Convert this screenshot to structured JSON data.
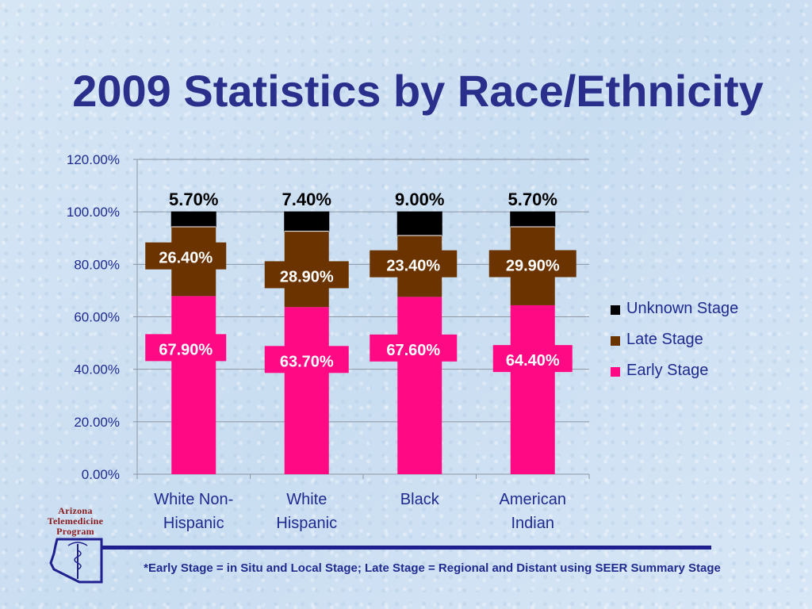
{
  "slide": {
    "title": "2009 Statistics by Race/Ethnicity",
    "footnote": "*Early Stage = in Situ and Local Stage; Late Stage = Regional and Distant using SEER Summary Stage",
    "logo": {
      "line1": "Arizona",
      "line2": "Telemedicine",
      "line3": "Program"
    }
  },
  "colors": {
    "early": "#ff0a84",
    "late": "#6b3300",
    "unknown": "#000000",
    "title": "#2a2f8c",
    "axis_text": "#1f2a8f",
    "category_text": "#1f2a8f"
  },
  "chart_data": {
    "type": "bar",
    "stacked": true,
    "categories": [
      [
        "White Non-",
        "Hispanic"
      ],
      [
        "White",
        "Hispanic"
      ],
      [
        "Black"
      ],
      [
        "American",
        "Indian"
      ]
    ],
    "series": [
      {
        "name": "Early Stage",
        "values": [
          67.9,
          63.7,
          67.6,
          64.4
        ],
        "labels": [
          "67.90%",
          "63.70%",
          "67.60%",
          "64.40%"
        ]
      },
      {
        "name": "Late Stage",
        "values": [
          26.4,
          28.9,
          23.4,
          29.9
        ],
        "labels": [
          "26.40%",
          "28.90%",
          "23.40%",
          "29.90%"
        ]
      },
      {
        "name": "Unknown Stage",
        "values": [
          5.7,
          7.4,
          9.0,
          5.7
        ],
        "labels": [
          "5.70%",
          "7.40%",
          "9.00%",
          "5.70%"
        ]
      }
    ],
    "legend_order": [
      "Unknown Stage",
      "Late Stage",
      "Early Stage"
    ],
    "legend_position": "right",
    "ylim": [
      0,
      120
    ],
    "yticks": [
      "0.00%",
      "20.00%",
      "40.00%",
      "60.00%",
      "80.00%",
      "100.00%",
      "120.00%"
    ],
    "grid": true
  }
}
